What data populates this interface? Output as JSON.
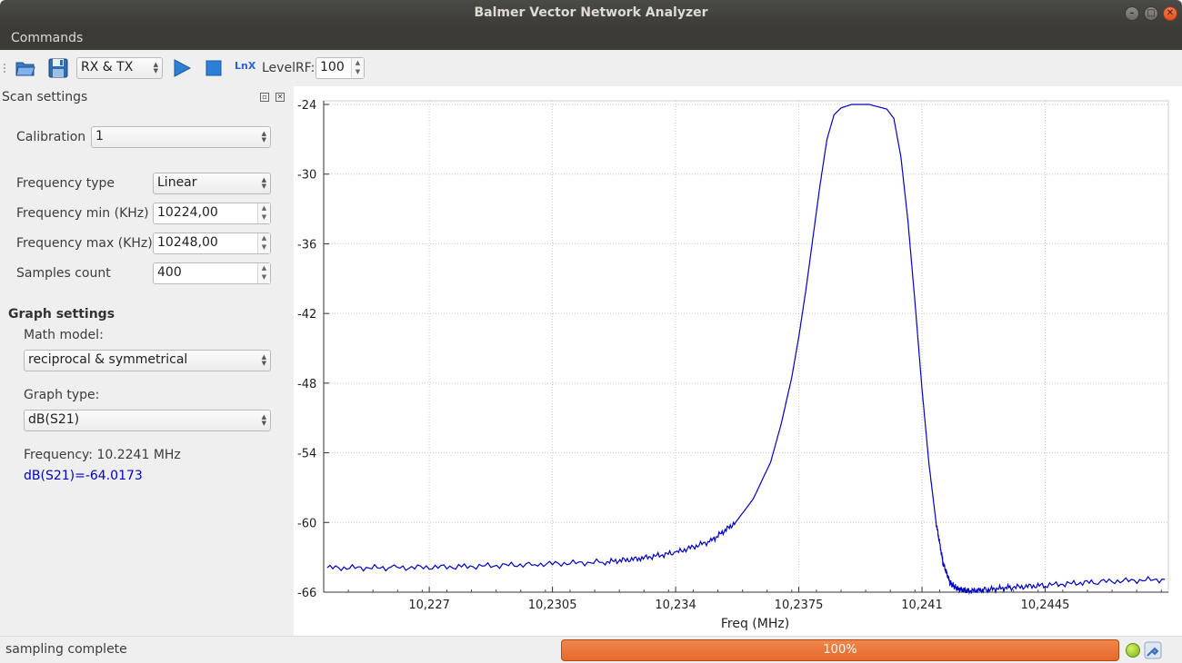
{
  "window": {
    "title": "Balmer Vector Network Analyzer"
  },
  "menu": {
    "commands": "Commands"
  },
  "toolbar": {
    "mode": "RX & TX",
    "lnx_label": "LnX",
    "level_rf_label": "LevelRF:",
    "level_rf_value": "100",
    "icons": [
      "open-folder-icon",
      "save-icon",
      "play-icon",
      "stop-icon",
      "lnx-icon"
    ]
  },
  "scan_settings": {
    "title": "Scan settings",
    "calibration_label": "Calibration",
    "calibration_value": "1",
    "freq_type_label": "Frequency type",
    "freq_type_value": "Linear",
    "freq_min_label": "Frequency min (KHz)",
    "freq_min_value": "10224,00",
    "freq_max_label": "Frequency max (KHz)",
    "freq_max_value": "10248,00",
    "samples_label": "Samples count",
    "samples_value": "400"
  },
  "graph_settings": {
    "title": "Graph settings",
    "math_model_label": "Math model:",
    "math_model_value": "reciprocal & symmetrical",
    "graph_type_label": "Graph type:",
    "graph_type_value": "dB(S21)",
    "frequency_readout": "Frequency: 10.2241 MHz",
    "value_readout": "dB(S21)=-64.0173",
    "value_color": "#0000cc"
  },
  "status": {
    "message": "sampling complete",
    "progress_text": "100%",
    "progress": 1.0,
    "progress_color": "#e96f32"
  },
  "chart_data": {
    "type": "line",
    "title": "",
    "xlabel": "Freq (MHz)",
    "ylabel": "",
    "xlim": [
      10.224,
      10.248
    ],
    "ylim": [
      -66,
      -24
    ],
    "x_ticks": [
      10.227,
      10.2305,
      10.234,
      10.2375,
      10.241,
      10.2445
    ],
    "x_tick_labels": [
      "10,227",
      "10,2305",
      "10,234",
      "10,2375",
      "10,241",
      "10,2445"
    ],
    "y_ticks": [
      -24,
      -30,
      -36,
      -42,
      -48,
      -54,
      -60,
      -66
    ],
    "y_tick_labels": [
      "-24",
      "-30",
      "-36",
      "-42",
      "-48",
      "-54",
      "-60",
      "-66"
    ],
    "grid": true,
    "line_color": "#0000cc",
    "series": [
      {
        "name": "dB(S21)",
        "x": [
          10.2241,
          10.226,
          10.228,
          10.23,
          10.232,
          10.233,
          10.234,
          10.235,
          10.2357,
          10.2362,
          10.2367,
          10.237,
          10.2373,
          10.2375,
          10.2377,
          10.2379,
          10.2381,
          10.2383,
          10.2385,
          10.2387,
          10.239,
          10.2395,
          10.24,
          10.2402,
          10.2404,
          10.2406,
          10.2408,
          10.241,
          10.2412,
          10.2414,
          10.2416,
          10.2418,
          10.242,
          10.2423,
          10.2428,
          10.2435,
          10.2445,
          10.246,
          10.2479
        ],
        "y": [
          -63.9,
          -63.9,
          -63.8,
          -63.6,
          -63.4,
          -63.1,
          -62.6,
          -61.6,
          -60.0,
          -58.0,
          -54.8,
          -51.5,
          -47.5,
          -44.0,
          -40.0,
          -35.5,
          -31.0,
          -27.0,
          -24.9,
          -24.3,
          -24.0,
          -24.0,
          -24.4,
          -25.2,
          -28.5,
          -34.0,
          -41.0,
          -48.5,
          -55.0,
          -60.0,
          -63.5,
          -65.2,
          -65.7,
          -65.9,
          -65.8,
          -65.6,
          -65.4,
          -65.1,
          -64.9
        ]
      }
    ]
  }
}
